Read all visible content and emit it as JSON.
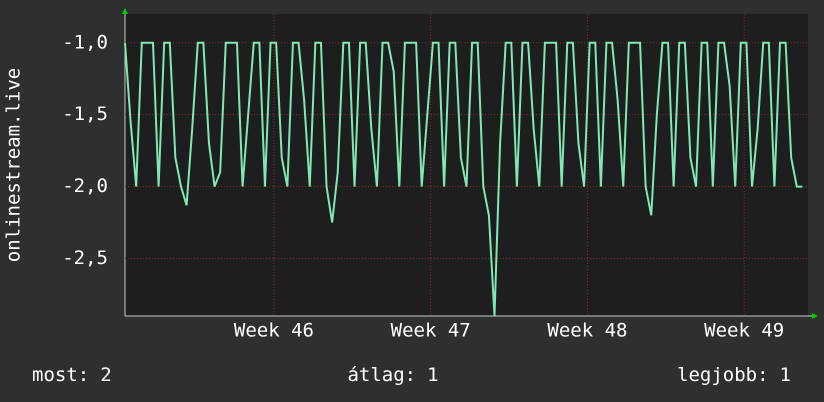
{
  "chart_data": {
    "type": "line",
    "y_label": "onlinestream.live",
    "xlim": [
      0,
      30.5
    ],
    "xticks": [
      {
        "value": 6.65,
        "label": "Week 46"
      },
      {
        "value": 13.65,
        "label": "Week 47"
      },
      {
        "value": 20.65,
        "label": "Week 48"
      },
      {
        "value": 27.65,
        "label": "Week 49"
      }
    ],
    "ylim": [
      -2.9,
      -0.8
    ],
    "yticks": [
      {
        "value": -1.0,
        "label": "-1,0"
      },
      {
        "value": -1.5,
        "label": "-1,5"
      },
      {
        "value": -2.0,
        "label": "-2,0"
      },
      {
        "value": -2.5,
        "label": "-2,5"
      }
    ],
    "grid": true,
    "series": [
      {
        "color": "#80e8b4",
        "x": [
          0,
          0.25,
          0.5,
          0.75,
          1,
          1.25,
          1.5,
          1.75,
          2,
          2.25,
          2.5,
          2.75,
          3,
          3.25,
          3.5,
          3.75,
          4,
          4.25,
          4.5,
          4.75,
          5,
          5.25,
          5.5,
          5.75,
          6,
          6.25,
          6.5,
          6.75,
          7,
          7.25,
          7.5,
          7.75,
          8,
          8.25,
          8.5,
          8.75,
          9,
          9.25,
          9.5,
          9.75,
          10,
          10.25,
          10.5,
          10.75,
          11,
          11.25,
          11.5,
          11.75,
          12,
          12.25,
          12.5,
          12.75,
          13,
          13.25,
          13.5,
          13.75,
          14,
          14.25,
          14.5,
          14.75,
          15,
          15.25,
          15.5,
          15.75,
          16,
          16.25,
          16.5,
          16.75,
          17,
          17.25,
          17.5,
          17.75,
          18,
          18.25,
          18.5,
          18.75,
          19,
          19.25,
          19.5,
          19.75,
          20,
          20.25,
          20.5,
          20.75,
          21,
          21.25,
          21.5,
          21.75,
          22,
          22.25,
          22.5,
          22.75,
          23,
          23.25,
          23.5,
          23.75,
          24,
          24.25,
          24.5,
          24.75,
          25,
          25.25,
          25.5,
          25.75,
          26,
          26.25,
          26.5,
          26.75,
          27,
          27.25,
          27.5,
          27.75,
          28,
          28.25,
          28.5,
          28.75,
          29,
          29.25,
          29.5,
          29.75,
          30,
          30.25
        ],
        "values": [
          -1,
          -1.55,
          -2,
          -1,
          -1,
          -1,
          -2,
          -1,
          -1,
          -1.8,
          -2,
          -2.13,
          -1.6,
          -1,
          -1,
          -1.7,
          -2,
          -1.9,
          -1,
          -1,
          -1,
          -2,
          -1.5,
          -1,
          -1,
          -2,
          -1,
          -1,
          -1.8,
          -2,
          -1,
          -1,
          -1.4,
          -2,
          -1,
          -1,
          -2,
          -2.25,
          -1.9,
          -1,
          -1,
          -2,
          -1,
          -1,
          -1.6,
          -2,
          -1,
          -1,
          -1.2,
          -2,
          -1,
          -1,
          -1,
          -2,
          -1.5,
          -1,
          -1,
          -2,
          -1,
          -1,
          -1.8,
          -2,
          -1,
          -1,
          -2,
          -2.2,
          -2.9,
          -1.7,
          -1,
          -1,
          -2,
          -1,
          -1,
          -1.6,
          -2,
          -1,
          -1,
          -1,
          -2,
          -1,
          -1,
          -1.7,
          -2,
          -1,
          -1,
          -2,
          -1,
          -1,
          -1.4,
          -2,
          -1,
          -1,
          -1,
          -2,
          -2.2,
          -1.5,
          -1,
          -1,
          -2,
          -1,
          -1,
          -1.8,
          -2,
          -1,
          -1,
          -2,
          -1,
          -1,
          -1.3,
          -2,
          -1,
          -1,
          -2,
          -1.6,
          -1,
          -1,
          -2,
          -1,
          -1,
          -1.8,
          -2,
          -2
        ]
      }
    ],
    "stats": [
      {
        "label": "most:",
        "value": 2
      },
      {
        "label": "átlag:",
        "value": 1
      },
      {
        "label": "legjobb:",
        "value": 1
      }
    ]
  }
}
